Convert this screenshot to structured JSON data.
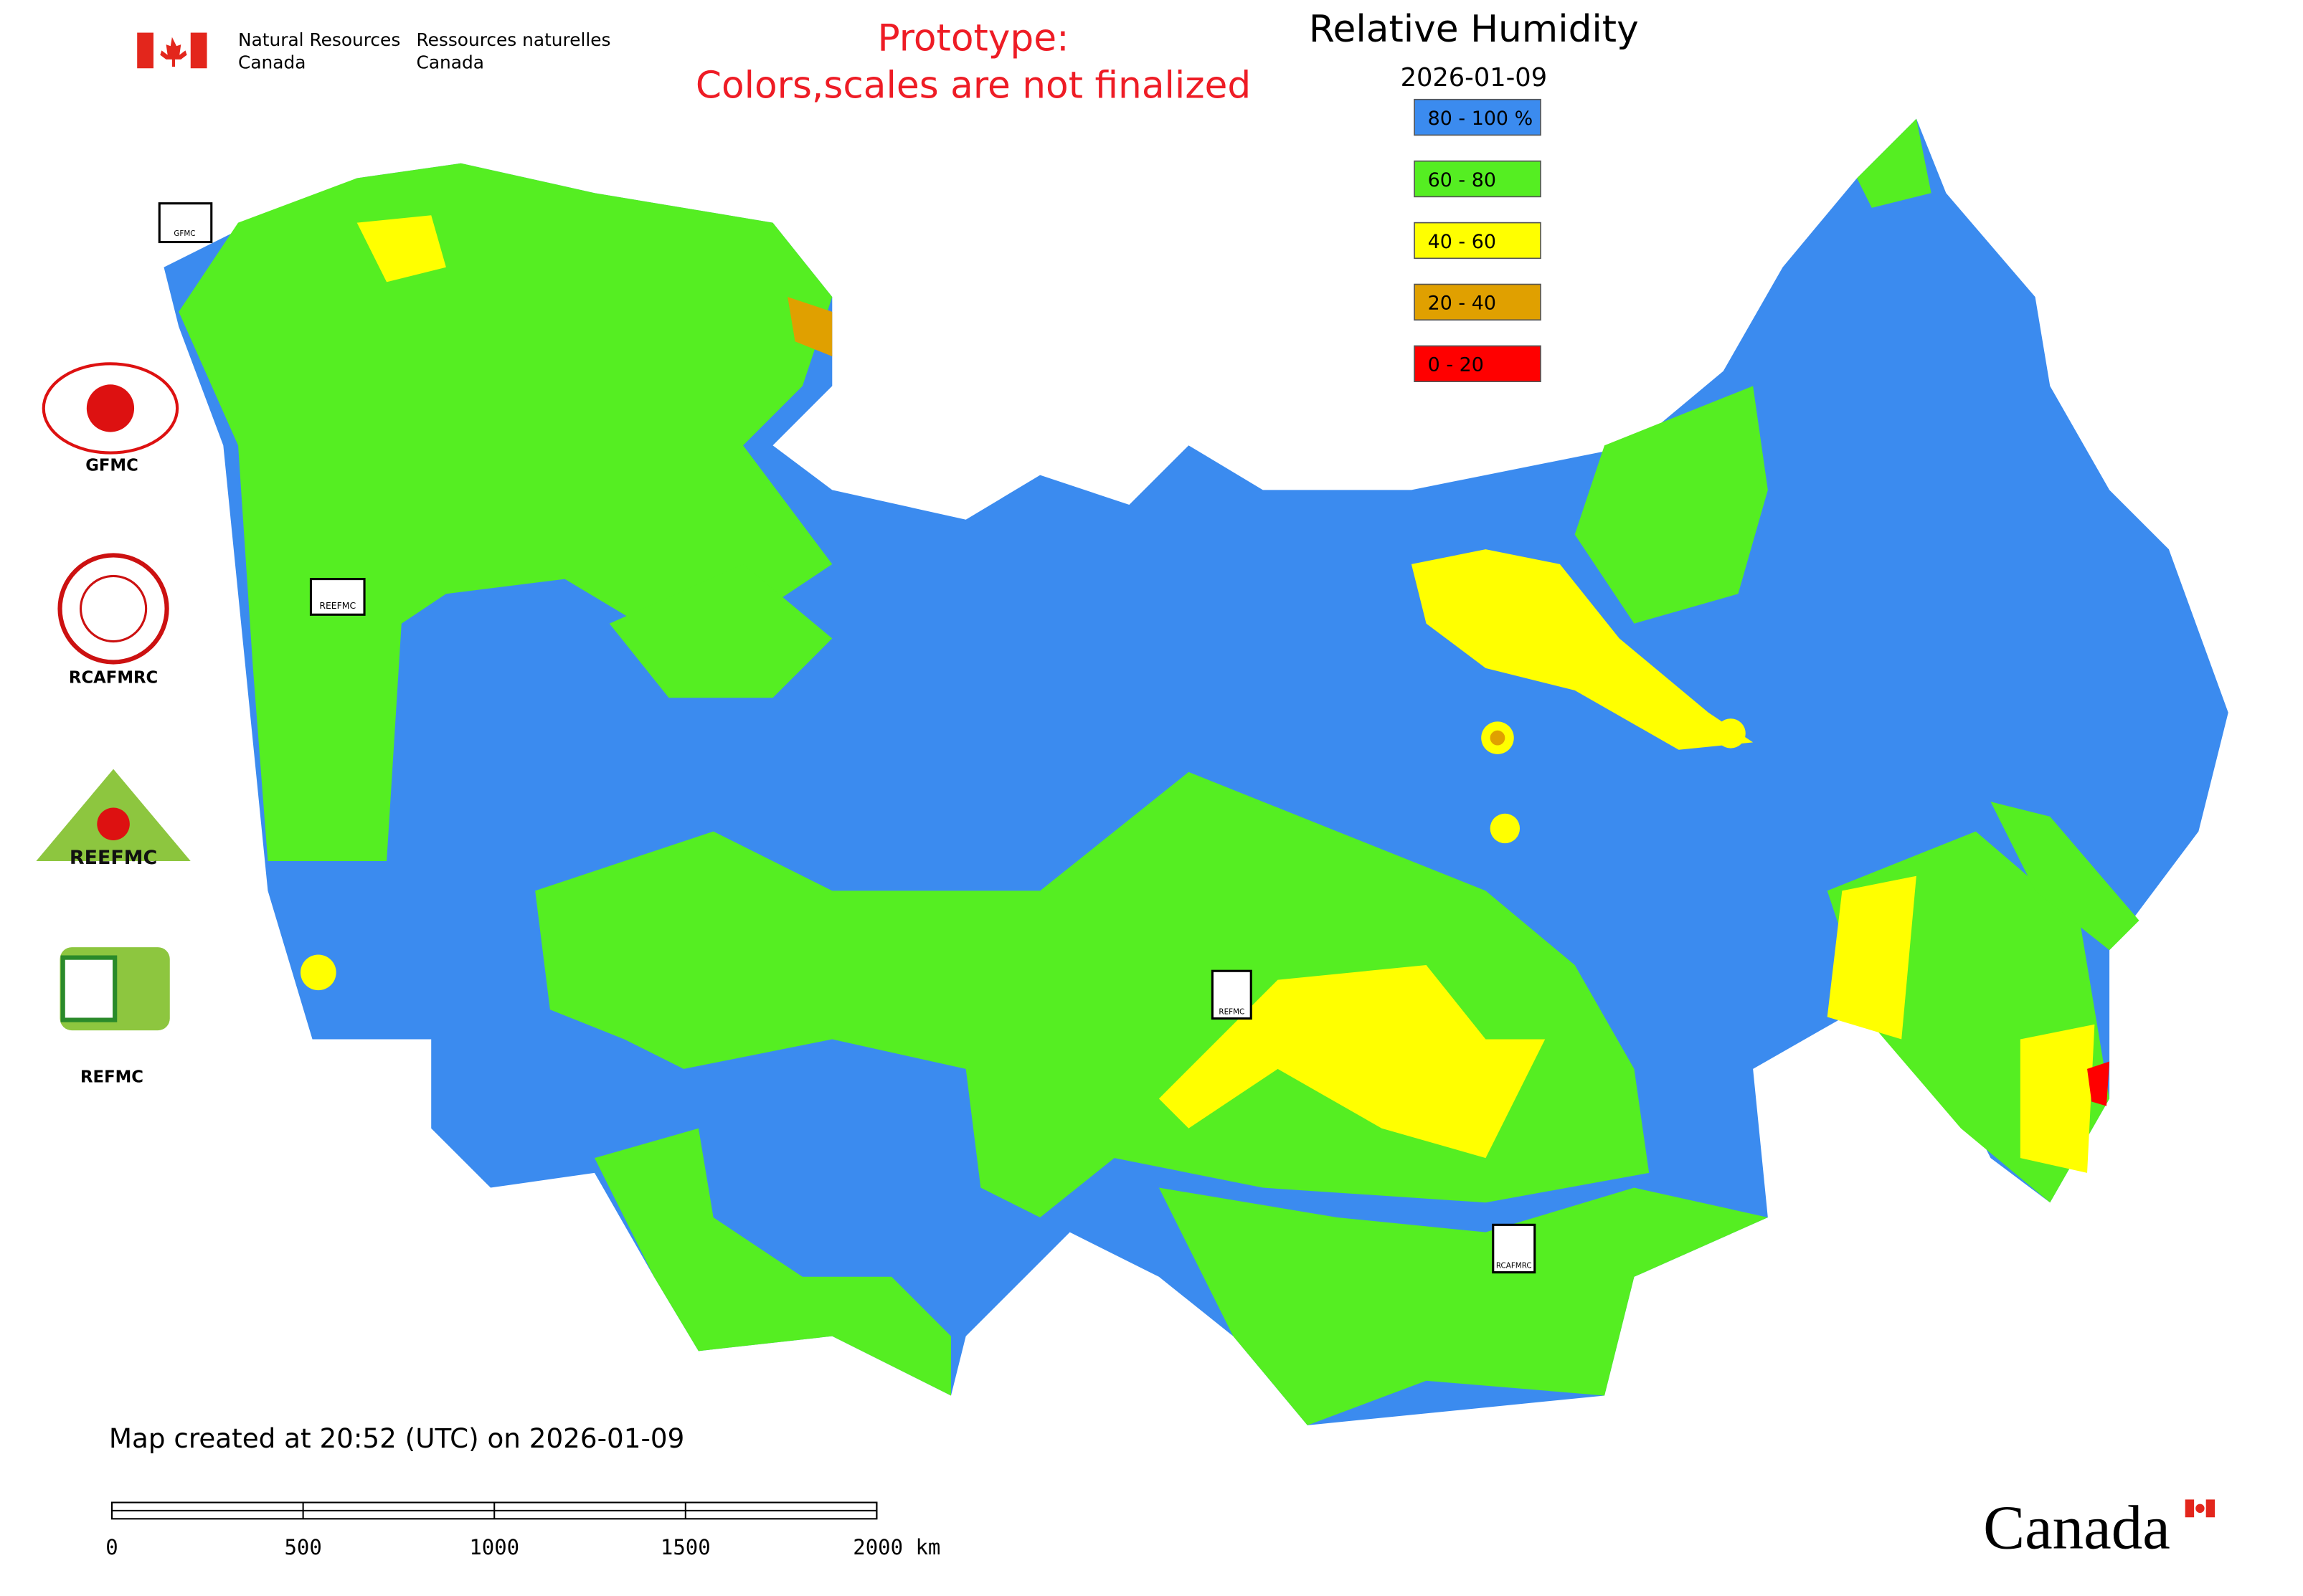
{
  "header": {
    "agency_en": [
      "Natural Resources",
      "Canada"
    ],
    "agency_fr": [
      "Ressources naturelles",
      "Canada"
    ],
    "notice": [
      "Prototype:",
      "Colors,scales are not finalized"
    ]
  },
  "title": "Relative Humidity",
  "date": "2026-01-09",
  "legend": [
    {
      "label": "80 - 100 %",
      "color": "#3b8bef"
    },
    {
      "label": "60 - 80",
      "color": "#55ee22"
    },
    {
      "label": "40 - 60",
      "color": "#ffff00"
    },
    {
      "label": "20 - 40",
      "color": "#e0a000"
    },
    {
      "label": "0 - 20",
      "color": "#ff0000"
    }
  ],
  "logos": [
    "GFMC",
    "RCAFMRC",
    "REEFMC",
    "REFMC"
  ],
  "map_labels": [
    "GFMC",
    "REEFMC",
    "REFMC",
    "RCAFMRC"
  ],
  "footer": "Map created at 20:52 (UTC) on 2026-01-09",
  "scale_bar": [
    "0",
    "500",
    "1000",
    "1500",
    "2000 km"
  ],
  "wordmark": "Canada"
}
